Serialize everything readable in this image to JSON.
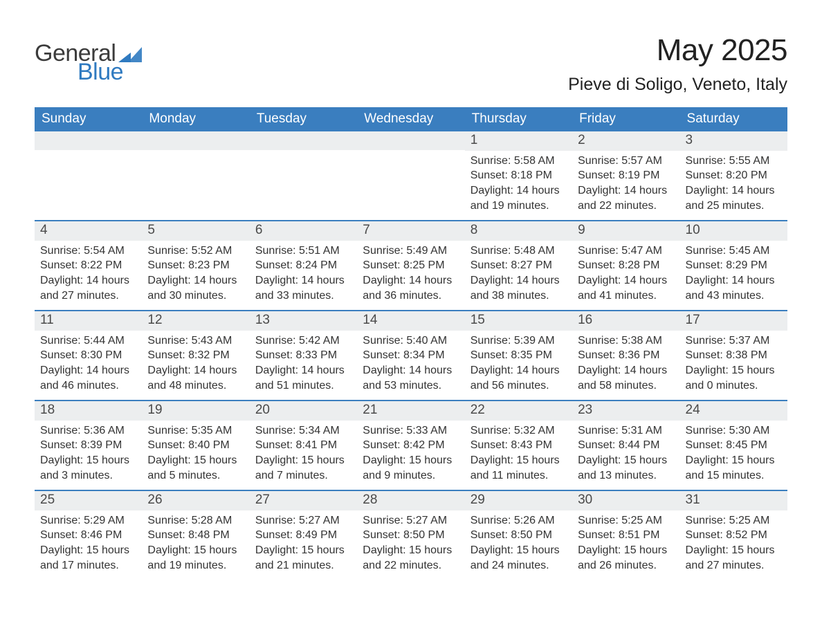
{
  "brand": {
    "general": "General",
    "blue": "Blue",
    "logo_color": "#2f7ac0",
    "text_color": "#3b3b3b"
  },
  "header": {
    "title": "May 2025",
    "location": "Pieve di Soligo, Veneto, Italy"
  },
  "colors": {
    "header_bg": "#3a7ebf",
    "header_text": "#ffffff",
    "daynum_bg": "#eceeef",
    "border": "#3a7ebf",
    "body_text": "#333333",
    "page_bg": "#ffffff"
  },
  "weekdays": [
    "Sunday",
    "Monday",
    "Tuesday",
    "Wednesday",
    "Thursday",
    "Friday",
    "Saturday"
  ],
  "weeks": [
    [
      {
        "day": "",
        "sunrise": "",
        "sunset": "",
        "daylight": ""
      },
      {
        "day": "",
        "sunrise": "",
        "sunset": "",
        "daylight": ""
      },
      {
        "day": "",
        "sunrise": "",
        "sunset": "",
        "daylight": ""
      },
      {
        "day": "",
        "sunrise": "",
        "sunset": "",
        "daylight": ""
      },
      {
        "day": "1",
        "sunrise": "Sunrise: 5:58 AM",
        "sunset": "Sunset: 8:18 PM",
        "daylight": "Daylight: 14 hours and 19 minutes."
      },
      {
        "day": "2",
        "sunrise": "Sunrise: 5:57 AM",
        "sunset": "Sunset: 8:19 PM",
        "daylight": "Daylight: 14 hours and 22 minutes."
      },
      {
        "day": "3",
        "sunrise": "Sunrise: 5:55 AM",
        "sunset": "Sunset: 8:20 PM",
        "daylight": "Daylight: 14 hours and 25 minutes."
      }
    ],
    [
      {
        "day": "4",
        "sunrise": "Sunrise: 5:54 AM",
        "sunset": "Sunset: 8:22 PM",
        "daylight": "Daylight: 14 hours and 27 minutes."
      },
      {
        "day": "5",
        "sunrise": "Sunrise: 5:52 AM",
        "sunset": "Sunset: 8:23 PM",
        "daylight": "Daylight: 14 hours and 30 minutes."
      },
      {
        "day": "6",
        "sunrise": "Sunrise: 5:51 AM",
        "sunset": "Sunset: 8:24 PM",
        "daylight": "Daylight: 14 hours and 33 minutes."
      },
      {
        "day": "7",
        "sunrise": "Sunrise: 5:49 AM",
        "sunset": "Sunset: 8:25 PM",
        "daylight": "Daylight: 14 hours and 36 minutes."
      },
      {
        "day": "8",
        "sunrise": "Sunrise: 5:48 AM",
        "sunset": "Sunset: 8:27 PM",
        "daylight": "Daylight: 14 hours and 38 minutes."
      },
      {
        "day": "9",
        "sunrise": "Sunrise: 5:47 AM",
        "sunset": "Sunset: 8:28 PM",
        "daylight": "Daylight: 14 hours and 41 minutes."
      },
      {
        "day": "10",
        "sunrise": "Sunrise: 5:45 AM",
        "sunset": "Sunset: 8:29 PM",
        "daylight": "Daylight: 14 hours and 43 minutes."
      }
    ],
    [
      {
        "day": "11",
        "sunrise": "Sunrise: 5:44 AM",
        "sunset": "Sunset: 8:30 PM",
        "daylight": "Daylight: 14 hours and 46 minutes."
      },
      {
        "day": "12",
        "sunrise": "Sunrise: 5:43 AM",
        "sunset": "Sunset: 8:32 PM",
        "daylight": "Daylight: 14 hours and 48 minutes."
      },
      {
        "day": "13",
        "sunrise": "Sunrise: 5:42 AM",
        "sunset": "Sunset: 8:33 PM",
        "daylight": "Daylight: 14 hours and 51 minutes."
      },
      {
        "day": "14",
        "sunrise": "Sunrise: 5:40 AM",
        "sunset": "Sunset: 8:34 PM",
        "daylight": "Daylight: 14 hours and 53 minutes."
      },
      {
        "day": "15",
        "sunrise": "Sunrise: 5:39 AM",
        "sunset": "Sunset: 8:35 PM",
        "daylight": "Daylight: 14 hours and 56 minutes."
      },
      {
        "day": "16",
        "sunrise": "Sunrise: 5:38 AM",
        "sunset": "Sunset: 8:36 PM",
        "daylight": "Daylight: 14 hours and 58 minutes."
      },
      {
        "day": "17",
        "sunrise": "Sunrise: 5:37 AM",
        "sunset": "Sunset: 8:38 PM",
        "daylight": "Daylight: 15 hours and 0 minutes."
      }
    ],
    [
      {
        "day": "18",
        "sunrise": "Sunrise: 5:36 AM",
        "sunset": "Sunset: 8:39 PM",
        "daylight": "Daylight: 15 hours and 3 minutes."
      },
      {
        "day": "19",
        "sunrise": "Sunrise: 5:35 AM",
        "sunset": "Sunset: 8:40 PM",
        "daylight": "Daylight: 15 hours and 5 minutes."
      },
      {
        "day": "20",
        "sunrise": "Sunrise: 5:34 AM",
        "sunset": "Sunset: 8:41 PM",
        "daylight": "Daylight: 15 hours and 7 minutes."
      },
      {
        "day": "21",
        "sunrise": "Sunrise: 5:33 AM",
        "sunset": "Sunset: 8:42 PM",
        "daylight": "Daylight: 15 hours and 9 minutes."
      },
      {
        "day": "22",
        "sunrise": "Sunrise: 5:32 AM",
        "sunset": "Sunset: 8:43 PM",
        "daylight": "Daylight: 15 hours and 11 minutes."
      },
      {
        "day": "23",
        "sunrise": "Sunrise: 5:31 AM",
        "sunset": "Sunset: 8:44 PM",
        "daylight": "Daylight: 15 hours and 13 minutes."
      },
      {
        "day": "24",
        "sunrise": "Sunrise: 5:30 AM",
        "sunset": "Sunset: 8:45 PM",
        "daylight": "Daylight: 15 hours and 15 minutes."
      }
    ],
    [
      {
        "day": "25",
        "sunrise": "Sunrise: 5:29 AM",
        "sunset": "Sunset: 8:46 PM",
        "daylight": "Daylight: 15 hours and 17 minutes."
      },
      {
        "day": "26",
        "sunrise": "Sunrise: 5:28 AM",
        "sunset": "Sunset: 8:48 PM",
        "daylight": "Daylight: 15 hours and 19 minutes."
      },
      {
        "day": "27",
        "sunrise": "Sunrise: 5:27 AM",
        "sunset": "Sunset: 8:49 PM",
        "daylight": "Daylight: 15 hours and 21 minutes."
      },
      {
        "day": "28",
        "sunrise": "Sunrise: 5:27 AM",
        "sunset": "Sunset: 8:50 PM",
        "daylight": "Daylight: 15 hours and 22 minutes."
      },
      {
        "day": "29",
        "sunrise": "Sunrise: 5:26 AM",
        "sunset": "Sunset: 8:50 PM",
        "daylight": "Daylight: 15 hours and 24 minutes."
      },
      {
        "day": "30",
        "sunrise": "Sunrise: 5:25 AM",
        "sunset": "Sunset: 8:51 PM",
        "daylight": "Daylight: 15 hours and 26 minutes."
      },
      {
        "day": "31",
        "sunrise": "Sunrise: 5:25 AM",
        "sunset": "Sunset: 8:52 PM",
        "daylight": "Daylight: 15 hours and 27 minutes."
      }
    ]
  ]
}
